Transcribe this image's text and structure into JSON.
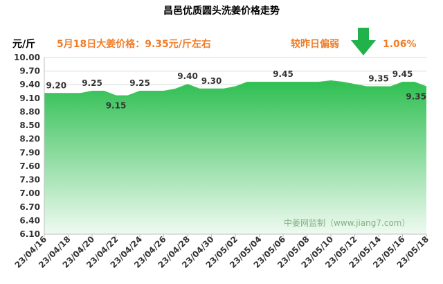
{
  "chart_data": {
    "type": "area",
    "title": "昌邑优质圆头洗姜价格走势",
    "ylabel": "元/斤",
    "ylim": [
      6.1,
      10.0
    ],
    "yticks": [
      "10.00",
      "9.70",
      "9.40",
      "9.10",
      "8.80",
      "8.50",
      "8.20",
      "7.90",
      "7.60",
      "7.30",
      "7.00",
      "6.70",
      "6.40",
      "6.10"
    ],
    "grid": true,
    "x": [
      "23/04/16",
      "23/04/17",
      "23/04/18",
      "23/04/19",
      "23/04/20",
      "23/04/21",
      "23/04/22",
      "23/04/23",
      "23/04/24",
      "23/04/25",
      "23/04/26",
      "23/04/27",
      "23/04/28",
      "23/04/29",
      "23/04/30",
      "23/05/01",
      "23/05/02",
      "23/05/03",
      "23/05/04",
      "23/05/05",
      "23/05/06",
      "23/05/07",
      "23/05/08",
      "23/05/09",
      "23/05/10",
      "23/05/11",
      "23/05/12",
      "23/05/13",
      "23/05/14",
      "23/05/15",
      "23/05/16",
      "23/05/17",
      "23/05/18"
    ],
    "xtick_labels": [
      "23/04/16",
      "23/04/18",
      "23/04/20",
      "23/04/22",
      "23/04/24",
      "23/04/26",
      "23/04/28",
      "23/04/30",
      "23/05/02",
      "23/05/04",
      "23/05/06",
      "23/05/08",
      "23/05/10",
      "23/05/12",
      "23/05/14",
      "23/05/16",
      "23/05/18"
    ],
    "values": [
      9.2,
      9.2,
      9.2,
      9.2,
      9.25,
      9.25,
      9.15,
      9.15,
      9.25,
      9.25,
      9.25,
      9.3,
      9.4,
      9.3,
      9.3,
      9.3,
      9.35,
      9.45,
      9.45,
      9.45,
      9.45,
      9.45,
      9.45,
      9.45,
      9.48,
      9.45,
      9.4,
      9.35,
      9.35,
      9.35,
      9.45,
      9.45,
      9.35
    ],
    "data_labels": [
      {
        "index": 1,
        "text": "9.20"
      },
      {
        "index": 4,
        "text": "9.25"
      },
      {
        "index": 6,
        "text": "9.15"
      },
      {
        "index": 8,
        "text": "9.25"
      },
      {
        "index": 12,
        "text": "9.40"
      },
      {
        "index": 14,
        "text": "9.30"
      },
      {
        "index": 20,
        "text": "9.45"
      },
      {
        "index": 28,
        "text": "9.35"
      },
      {
        "index": 30,
        "text": "9.45"
      },
      {
        "index": 32,
        "text": "9.35"
      }
    ],
    "colors": {
      "line": "#3cc35a",
      "fill_top": "#2fbf52",
      "fill_bottom": "#effaf1",
      "accent": "#f07d29",
      "arrow": "#22b24c"
    }
  },
  "header": {
    "note_price": "5月18日大姜价格：9.35元/斤左右",
    "note_change_label": "较昨日偏弱",
    "note_change_value": "1.06%"
  },
  "watermark": "中姜网监制（www.jiang7.com）"
}
